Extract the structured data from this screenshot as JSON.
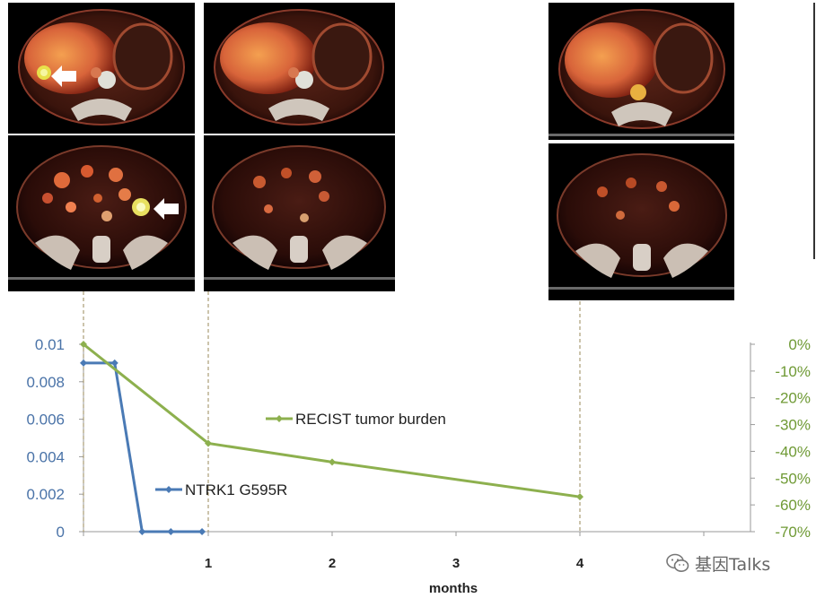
{
  "colors": {
    "ntrk_series": "#4a7ab5",
    "recist_series": "#8db04e",
    "left_axis_text": "#4a73a8",
    "right_axis_text": "#6f9a35",
    "x_axis_text": "#222222"
  },
  "chart_data": {
    "type": "line",
    "xlabel": "months",
    "x_ticks": [
      "1",
      "2",
      "3",
      "4"
    ],
    "xlim": [
      0,
      5
    ],
    "y_left": {
      "ticks": [
        "0.01",
        "0.008",
        "0.006",
        "0.004",
        "0.002",
        "0"
      ],
      "ylim": [
        0,
        0.01
      ]
    },
    "y_right": {
      "ticks": [
        "0%",
        "-10%",
        "-20%",
        "-30%",
        "-40%",
        "-50%",
        "-60%",
        "-70%"
      ],
      "ylim": [
        -70,
        0
      ]
    },
    "series": [
      {
        "name": "NTRK1 G595R",
        "axis": "left",
        "x": [
          0,
          0.25,
          0.47,
          0.7,
          0.95
        ],
        "y": [
          0.009,
          0.009,
          0,
          0,
          0
        ]
      },
      {
        "name": "RECIST tumor burden",
        "axis": "right",
        "x": [
          0,
          1,
          2,
          4
        ],
        "y": [
          0,
          -37,
          -44,
          -57
        ]
      }
    ],
    "scan_timepoints": [
      0,
      1,
      4
    ],
    "grid": false
  },
  "watermark": {
    "text": "基因Talks",
    "icon": "wechat-icon"
  }
}
